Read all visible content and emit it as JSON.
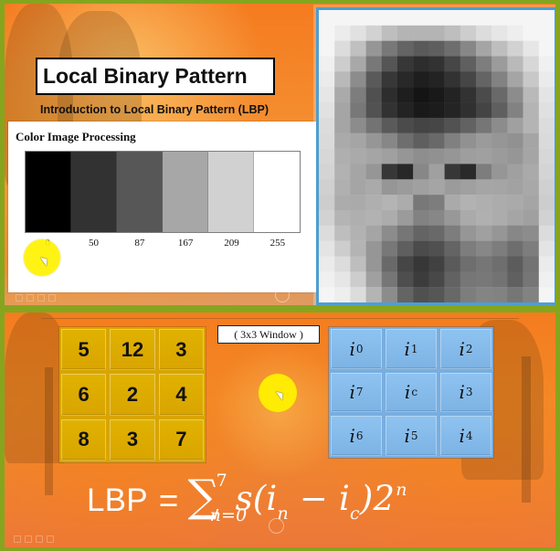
{
  "top_slide": {
    "title": "Local Binary Pattern",
    "subtitle": "Introduction to Local Binary Pattern (LBP)",
    "color_panel": {
      "title": "Color Image Processing",
      "swatches": [
        {
          "value": "0",
          "color": "#000000"
        },
        {
          "value": "50",
          "color": "#323232"
        },
        {
          "value": "87",
          "color": "#575757"
        },
        {
          "value": "167",
          "color": "#a7a7a7"
        },
        {
          "value": "209",
          "color": "#d1d1d1"
        },
        {
          "value": "255",
          "color": "#ffffff"
        }
      ]
    },
    "portrait": {
      "columns": 15,
      "rows": 19,
      "pixels": [
        [
          245,
          245,
          245,
          245,
          245,
          245,
          245,
          245,
          245,
          245,
          245,
          245,
          245,
          245,
          245
        ],
        [
          245,
          236,
          225,
          210,
          190,
          180,
          180,
          180,
          190,
          205,
          220,
          230,
          238,
          245,
          245
        ],
        [
          245,
          220,
          192,
          150,
          120,
          100,
          90,
          95,
          110,
          135,
          165,
          190,
          210,
          230,
          245
        ],
        [
          240,
          205,
          168,
          120,
          85,
          55,
          45,
          50,
          70,
          95,
          125,
          155,
          185,
          215,
          240
        ],
        [
          235,
          185,
          140,
          90,
          55,
          40,
          30,
          35,
          50,
          70,
          100,
          130,
          165,
          200,
          235
        ],
        [
          230,
          170,
          125,
          80,
          45,
          30,
          20,
          25,
          35,
          50,
          75,
          105,
          140,
          185,
          228
        ],
        [
          225,
          165,
          120,
          82,
          50,
          35,
          25,
          28,
          36,
          48,
          68,
          95,
          130,
          180,
          224
        ],
        [
          220,
          165,
          140,
          115,
          90,
          75,
          68,
          70,
          82,
          98,
          118,
          140,
          160,
          180,
          220
        ],
        [
          218,
          170,
          165,
          150,
          135,
          110,
          95,
          105,
          128,
          145,
          155,
          150,
          145,
          165,
          218
        ],
        [
          215,
          175,
          170,
          165,
          160,
          150,
          142,
          145,
          150,
          158,
          160,
          155,
          150,
          165,
          215
        ],
        [
          212,
          178,
          165,
          150,
          55,
          40,
          135,
          160,
          55,
          42,
          125,
          150,
          160,
          170,
          212
        ],
        [
          208,
          176,
          165,
          170,
          150,
          155,
          160,
          165,
          155,
          160,
          165,
          165,
          162,
          168,
          208
        ],
        [
          205,
          172,
          170,
          175,
          180,
          172,
          120,
          125,
          170,
          178,
          175,
          172,
          170,
          165,
          205
        ],
        [
          210,
          180,
          175,
          178,
          172,
          155,
          130,
          135,
          152,
          170,
          176,
          172,
          165,
          160,
          210
        ],
        [
          220,
          190,
          178,
          165,
          140,
          118,
          100,
          105,
          125,
          150,
          160,
          150,
          135,
          140,
          220
        ],
        [
          228,
          205,
          180,
          150,
          120,
          95,
          75,
          80,
          100,
          125,
          135,
          125,
          110,
          125,
          228
        ],
        [
          235,
          220,
          190,
          150,
          105,
          70,
          55,
          65,
          90,
          110,
          118,
          110,
          92,
          115,
          235
        ],
        [
          240,
          230,
          205,
          160,
          118,
          78,
          60,
          72,
          98,
          118,
          120,
          115,
          96,
          118,
          240
        ],
        [
          245,
          238,
          220,
          180,
          140,
          100,
          80,
          86,
          104,
          125,
          132,
          130,
          118,
          130,
          245
        ]
      ]
    }
  },
  "bottom_slide": {
    "caption": "( 3x3 Window )",
    "pixel_grid": [
      [
        "5",
        "12",
        "3"
      ],
      [
        "6",
        "2",
        "4"
      ],
      [
        "8",
        "3",
        "7"
      ]
    ],
    "index_grid": [
      [
        {
          "base": "i",
          "sub": "0"
        },
        {
          "base": "i",
          "sub": "1"
        },
        {
          "base": "i",
          "sub": "2"
        }
      ],
      [
        {
          "base": "i",
          "sub": "7"
        },
        {
          "base": "i",
          "sub": "c"
        },
        {
          "base": "i",
          "sub": "3"
        }
      ],
      [
        {
          "base": "i",
          "sub": "6"
        },
        {
          "base": "i",
          "sub": "5"
        },
        {
          "base": "i",
          "sub": "4"
        }
      ]
    ],
    "formula": {
      "lhs": "LBP",
      "eq": "=",
      "sigma": "∑",
      "upper": "7",
      "lower": "n=0",
      "body_prefix": "s(i",
      "sub_n": "n",
      "minus": " − i",
      "sub_c": "c",
      "close": ")2",
      "exponent": "n"
    }
  }
}
